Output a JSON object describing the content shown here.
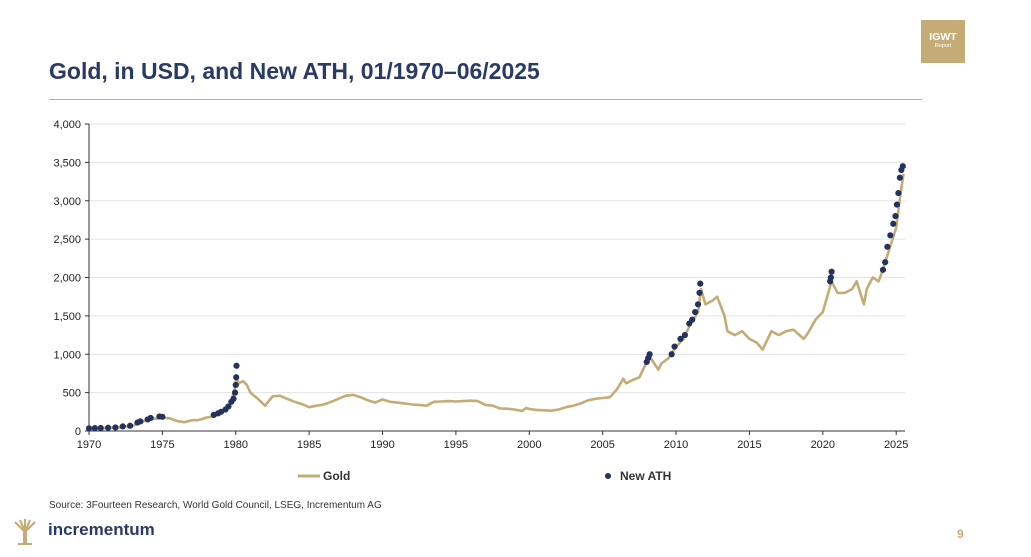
{
  "header": {
    "title": "Gold, in USD, and New ATH, 01/1970–06/2025",
    "badge_line1": "IGWT",
    "badge_line2": "Report"
  },
  "footer": {
    "source": "Source: 3Fourteen Research, World Gold Council, LSEG, Incrementum AG",
    "brand": "incrementum",
    "page_number": "9"
  },
  "colors": {
    "gold": "#c5ac76",
    "ath": "#23335e",
    "title": "#2a3a66",
    "grid": "#e3e3e3"
  },
  "chart_data": {
    "type": "line",
    "title": "Gold, in USD, and New ATH, 01/1970–06/2025",
    "xlabel": "",
    "ylabel": "",
    "xlim": [
      1970,
      2025.6
    ],
    "ylim": [
      0,
      4000
    ],
    "xticks": [
      1970,
      1975,
      1980,
      1985,
      1990,
      1995,
      2000,
      2005,
      2010,
      2015,
      2020,
      2025
    ],
    "xtick_labels": [
      "1970",
      "1975",
      "1980",
      "1985",
      "1990",
      "1995",
      "2000",
      "2005",
      "2010",
      "2015",
      "2020",
      "2025"
    ],
    "yticks": [
      0,
      500,
      1000,
      1500,
      2000,
      2500,
      3000,
      3500,
      4000
    ],
    "ytick_labels": [
      "0",
      "500",
      "1,000",
      "1,500",
      "2,000",
      "2,500",
      "3,000",
      "3,500",
      "4,000"
    ],
    "grid": true,
    "legend": [
      "Gold",
      "New ATH"
    ],
    "legend_position": "bottom",
    "series": [
      {
        "name": "Gold",
        "kind": "line",
        "x": [
          1970.0,
          1970.5,
          1971.0,
          1971.5,
          1972.0,
          1972.5,
          1973.0,
          1973.5,
          1974.0,
          1974.5,
          1975.0,
          1975.5,
          1976.0,
          1976.5,
          1977.0,
          1977.5,
          1978.0,
          1978.5,
          1979.0,
          1979.5,
          1979.9,
          1980.05,
          1980.2,
          1980.5,
          1980.75,
          1981.0,
          1981.5,
          1982.0,
          1982.5,
          1983.0,
          1983.5,
          1984.0,
          1984.5,
          1985.0,
          1985.5,
          1986.0,
          1986.5,
          1987.0,
          1987.5,
          1988.0,
          1988.5,
          1989.0,
          1989.5,
          1990.0,
          1990.5,
          1991.0,
          1991.5,
          1992.0,
          1992.5,
          1993.0,
          1993.5,
          1994.0,
          1994.5,
          1995.0,
          1995.5,
          1996.0,
          1996.5,
          1997.0,
          1997.5,
          1998.0,
          1998.5,
          1999.0,
          1999.5,
          1999.8,
          2000.0,
          2000.5,
          2001.0,
          2001.5,
          2002.0,
          2002.5,
          2003.0,
          2003.5,
          2004.0,
          2004.5,
          2005.0,
          2005.5,
          2006.0,
          2006.4,
          2006.6,
          2007.0,
          2007.5,
          2008.0,
          2008.2,
          2008.8,
          2009.0,
          2009.5,
          2010.0,
          2010.5,
          2011.0,
          2011.5,
          2011.7,
          2012.0,
          2012.5,
          2012.8,
          2013.0,
          2013.3,
          2013.5,
          2014.0,
          2014.5,
          2015.0,
          2015.5,
          2015.9,
          2016.5,
          2017.0,
          2017.5,
          2018.0,
          2018.7,
          2019.0,
          2019.5,
          2020.0,
          2020.6,
          2021.0,
          2021.5,
          2022.0,
          2022.3,
          2022.8,
          2023.0,
          2023.4,
          2023.8,
          2024.0,
          2024.5,
          2025.0,
          2025.3,
          2025.5
        ],
        "values": [
          35,
          36,
          38,
          41,
          45,
          60,
          70,
          110,
          150,
          160,
          175,
          165,
          130,
          115,
          140,
          145,
          175,
          190,
          230,
          300,
          520,
          700,
          620,
          650,
          600,
          500,
          420,
          330,
          450,
          460,
          420,
          380,
          350,
          310,
          330,
          345,
          380,
          420,
          460,
          470,
          440,
          400,
          370,
          410,
          380,
          370,
          360,
          345,
          340,
          330,
          380,
          385,
          390,
          385,
          390,
          395,
          390,
          340,
          330,
          295,
          290,
          280,
          260,
          300,
          285,
          275,
          270,
          265,
          280,
          310,
          330,
          360,
          400,
          420,
          430,
          440,
          550,
          680,
          620,
          660,
          700,
          900,
          970,
          800,
          880,
          950,
          1100,
          1200,
          1400,
          1550,
          1850,
          1650,
          1700,
          1750,
          1650,
          1500,
          1300,
          1250,
          1300,
          1200,
          1150,
          1060,
          1300,
          1250,
          1300,
          1320,
          1200,
          1280,
          1450,
          1550,
          1950,
          1800,
          1800,
          1850,
          1950,
          1650,
          1850,
          2000,
          1950,
          2050,
          2350,
          2650,
          3100,
          3350
        ]
      },
      {
        "name": "New ATH",
        "kind": "scatter",
        "x": [
          1970.0,
          1970.4,
          1970.8,
          1971.3,
          1971.8,
          1972.3,
          1972.8,
          1973.3,
          1973.5,
          1974.0,
          1974.2,
          1974.8,
          1975.0,
          1978.5,
          1978.8,
          1979.0,
          1979.3,
          1979.5,
          1979.7,
          1979.85,
          1979.95,
          1980.0,
          1980.03,
          1980.05,
          2008.0,
          2008.1,
          2008.2,
          2009.7,
          2009.9,
          2010.3,
          2010.6,
          2010.9,
          2011.1,
          2011.3,
          2011.5,
          2011.6,
          2011.65,
          2020.5,
          2020.55,
          2020.6,
          2024.1,
          2024.25,
          2024.4,
          2024.6,
          2024.8,
          2024.95,
          2025.05,
          2025.15,
          2025.25,
          2025.35,
          2025.45
        ],
        "values": [
          35,
          37,
          39,
          42,
          46,
          60,
          68,
          110,
          125,
          150,
          170,
          190,
          185,
          210,
          230,
          250,
          280,
          320,
          380,
          420,
          500,
          600,
          700,
          850,
          900,
          950,
          1000,
          1000,
          1100,
          1200,
          1250,
          1400,
          1450,
          1550,
          1650,
          1800,
          1920,
          1950,
          2000,
          2075,
          2100,
          2200,
          2400,
          2550,
          2700,
          2800,
          2950,
          3100,
          3300,
          3400,
          3450
        ]
      }
    ]
  }
}
